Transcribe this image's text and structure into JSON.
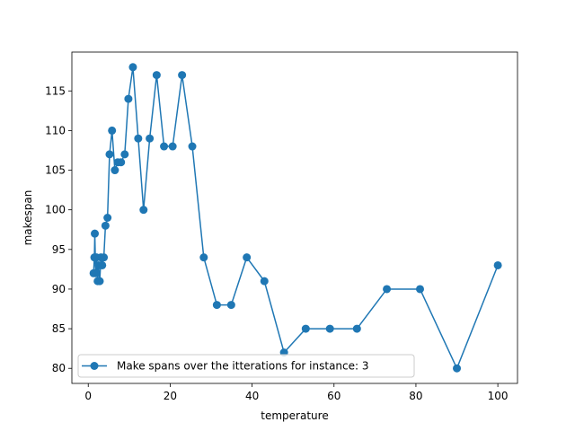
{
  "chart_data": {
    "type": "line",
    "xlabel": "temperature",
    "ylabel": "makespan",
    "xlim": [
      -4.0,
      104.8
    ],
    "ylim": [
      78.1,
      119.9
    ],
    "xticks": [
      0,
      20,
      40,
      60,
      80,
      100
    ],
    "yticks": [
      80,
      85,
      90,
      95,
      100,
      105,
      110,
      115
    ],
    "grid": false,
    "legend_position": "lower-left",
    "series": [
      {
        "name": "Make spans over the itterations for instance: 3",
        "color": "#1f77b4",
        "marker": "circle",
        "x": [
          100.0,
          90.0,
          81.0,
          72.9,
          65.6,
          59.0,
          53.1,
          47.8,
          43.0,
          38.7,
          34.9,
          31.4,
          28.2,
          25.4,
          22.9,
          20.6,
          18.5,
          16.7,
          15.0,
          13.5,
          12.2,
          10.9,
          9.8,
          8.9,
          8.0,
          7.2,
          6.5,
          5.8,
          5.2,
          4.7,
          4.2,
          3.8,
          3.4,
          3.1,
          2.8,
          2.5,
          2.3,
          2.0,
          1.8,
          1.6,
          1.5,
          1.3
        ],
        "y": [
          93,
          80,
          90,
          90,
          85,
          85,
          85,
          82,
          91,
          94,
          88,
          88,
          94,
          108,
          117,
          108,
          108,
          117,
          109,
          100,
          109,
          118,
          114,
          107,
          106,
          106,
          105,
          110,
          107,
          99,
          98,
          94,
          93,
          94,
          91,
          93,
          91,
          94,
          92,
          97,
          94,
          92
        ]
      }
    ]
  }
}
